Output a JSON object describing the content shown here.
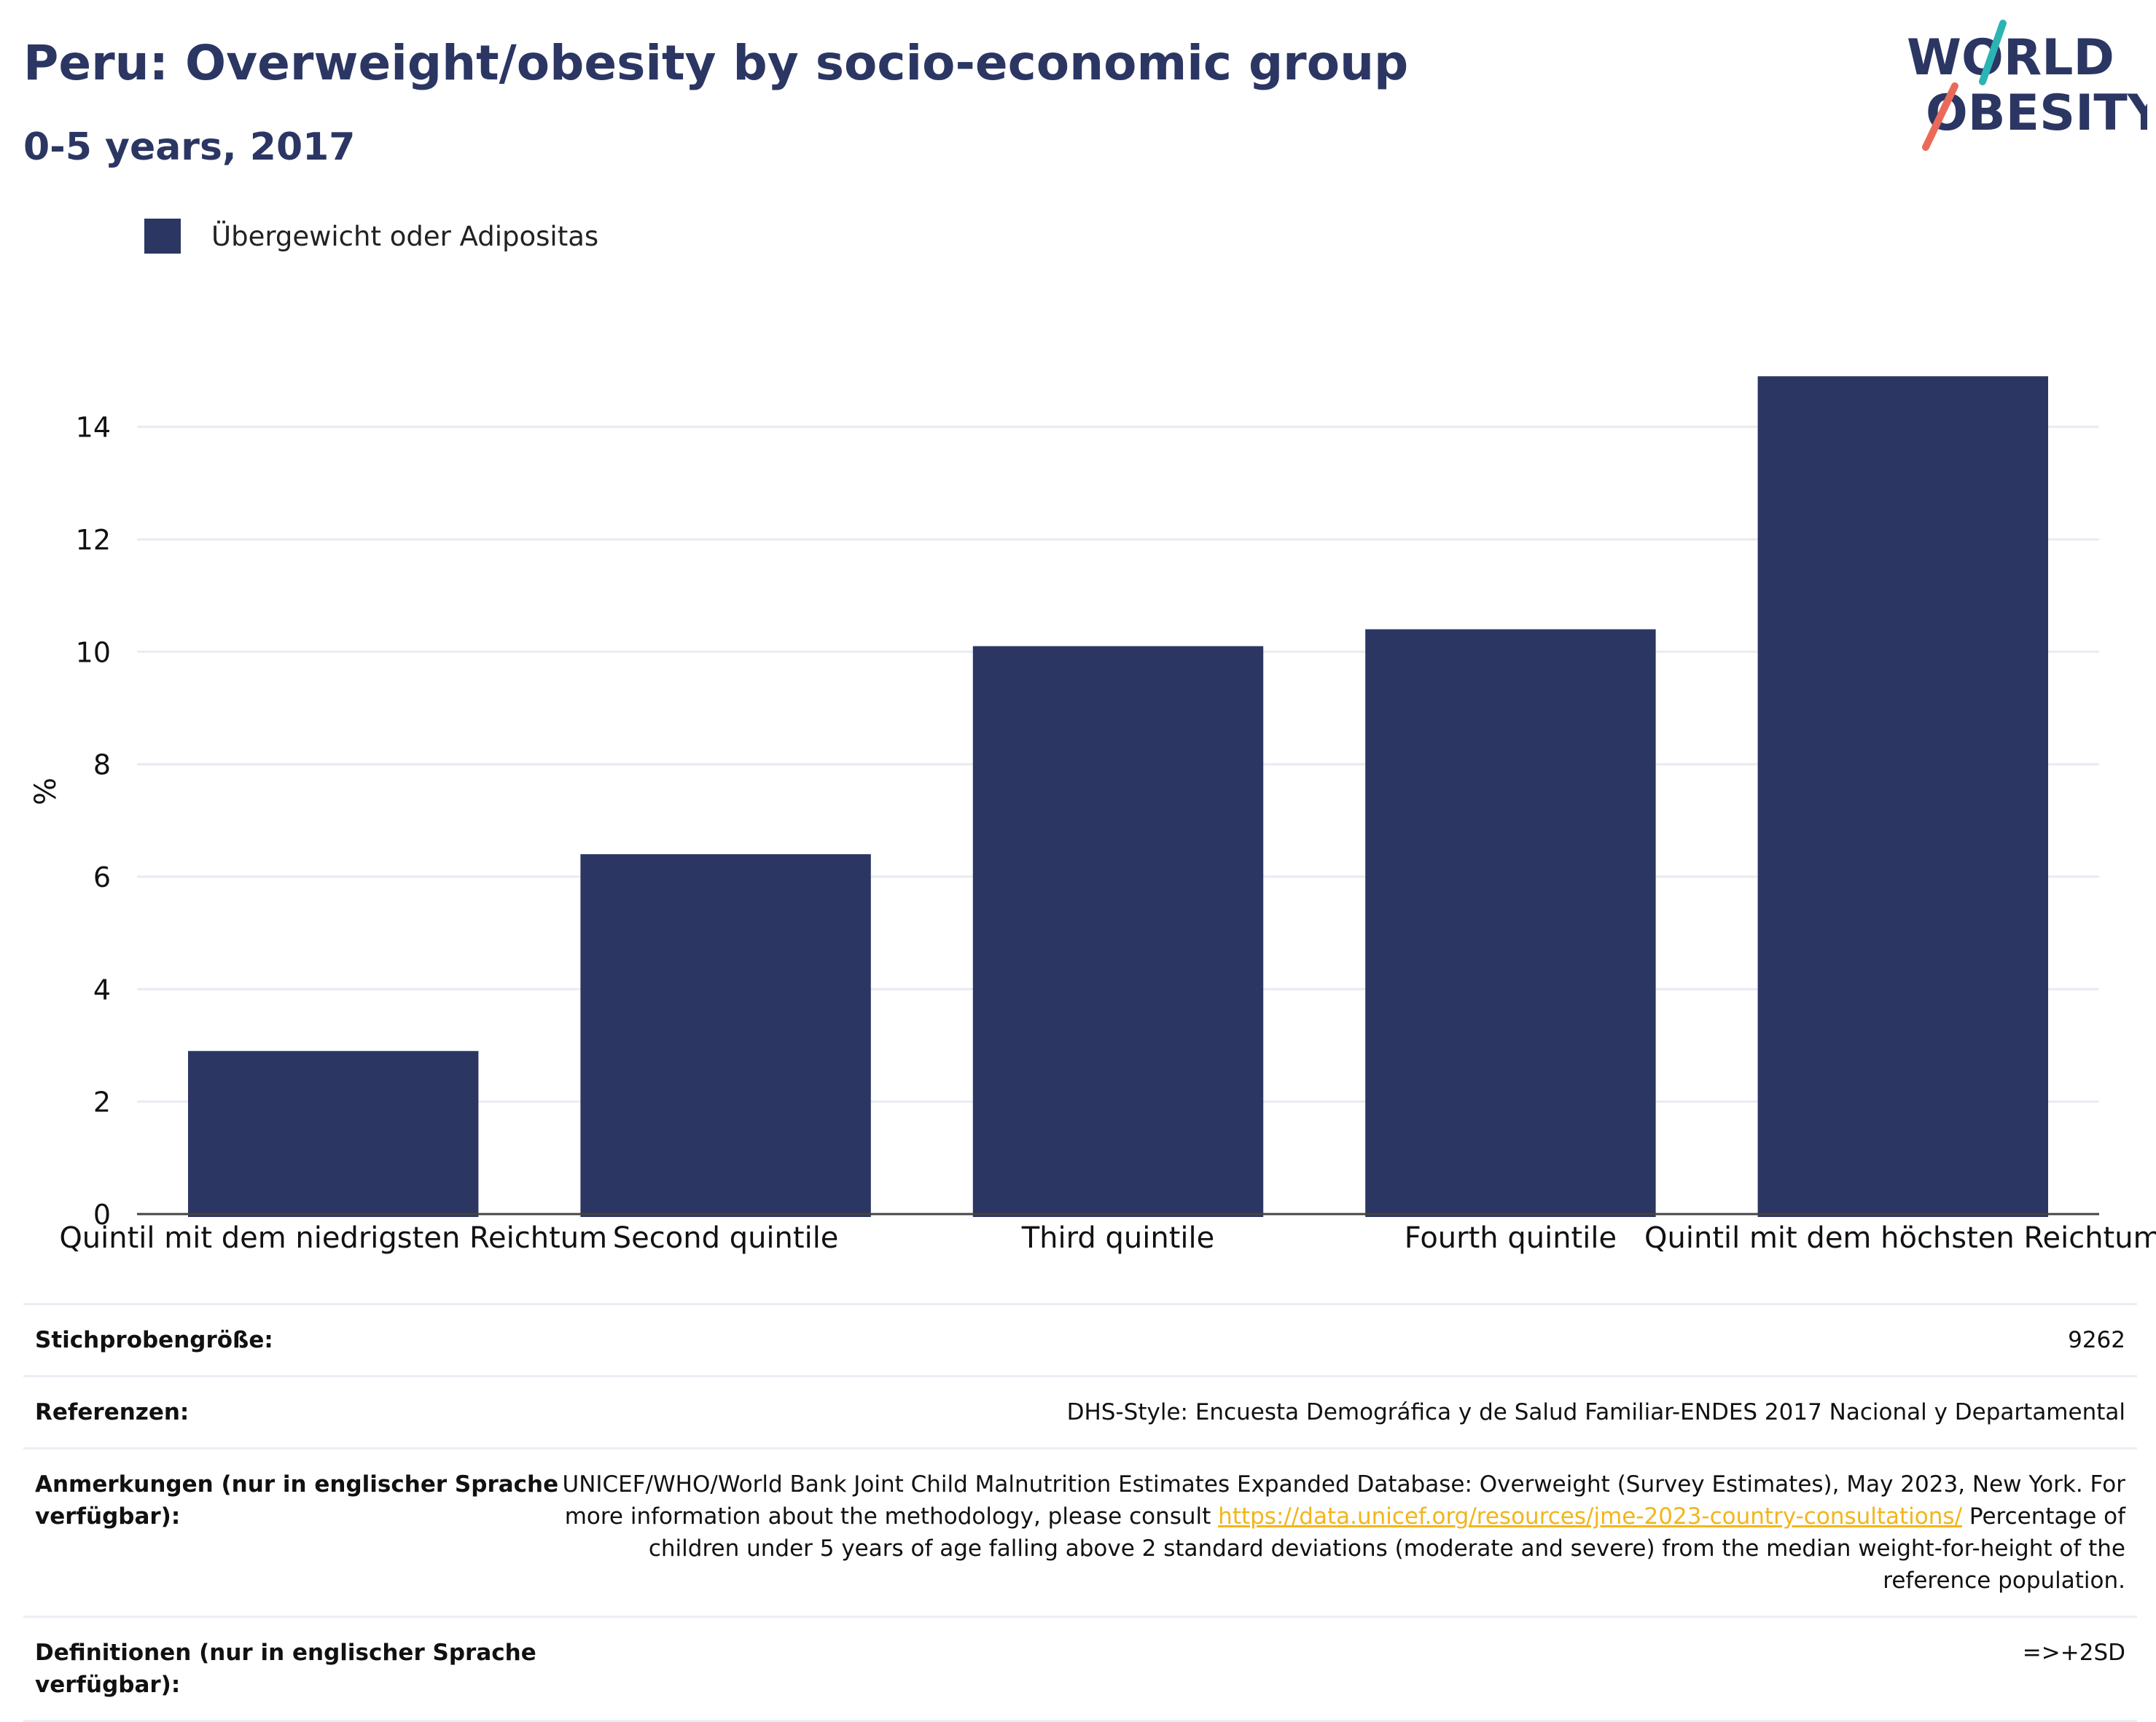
{
  "header": {
    "title": "Peru: Overweight/obesity by socio-economic group",
    "subtitle": "0-5 years, 2017"
  },
  "logo": {
    "line1": "WORLD",
    "line2": "OBESITY",
    "colors": {
      "navy": "#2b3663",
      "teal": "#2bb4b3",
      "coral": "#ea6a5a"
    }
  },
  "legend": {
    "label": "Übergewicht oder Adipositas",
    "color": "#2b3663"
  },
  "chart_data": {
    "type": "bar",
    "categories": [
      "Quintil mit dem niedrigsten Reichtum",
      "Second quintile",
      "Third quintile",
      "Fourth quintile",
      "Quintil mit dem höchsten Reichtum"
    ],
    "series": [
      {
        "name": "Übergewicht oder Adipositas",
        "values": [
          2.9,
          6.4,
          10.1,
          10.4,
          14.9
        ],
        "color": "#2b3663"
      }
    ],
    "title": "",
    "xlabel": "",
    "ylabel": "%",
    "ylim": [
      0,
      15.5
    ],
    "yticks": [
      0,
      2,
      4,
      6,
      8,
      10,
      12,
      14
    ],
    "grid": true,
    "legend_position": "top-left"
  },
  "info": {
    "sample_size": {
      "label": "Stichprobengröße:",
      "value": "9262"
    },
    "references": {
      "label": "Referenzen:",
      "value": "DHS-Style: Encuesta Demográfica y de Salud Familiar-ENDES 2017 Nacional y Departamental"
    },
    "notes": {
      "label": "Anmerkungen (nur in englischer Sprache verfügbar):",
      "text_before": "UNICEF/WHO/World Bank Joint Child Malnutrition Estimates Expanded Database: Overweight (Survey Estimates), May 2023, New York. For more information about the methodology, please consult ",
      "link": "https://data.unicef.org/resources/jme-2023-country-consultations/",
      "text_after": " Percentage of children under 5 years of age falling above 2 standard deviations (moderate and severe) from the median weight-for-height of the reference population."
    },
    "definitions": {
      "label": "Definitionen (nur in englischer Sprache verfügbar):",
      "value": "=>+2SD"
    }
  }
}
